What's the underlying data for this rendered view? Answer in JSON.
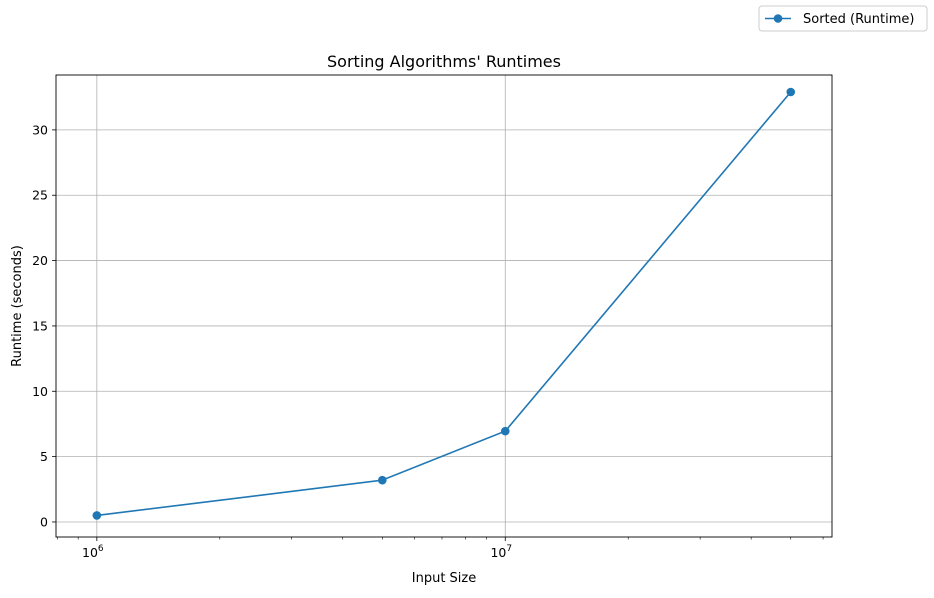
{
  "chart_data": {
    "type": "line",
    "title": "Sorting Algorithms' Runtimes",
    "xlabel": "Input Size",
    "ylabel": "Runtime (seconds)",
    "xscale": "log",
    "xlim": [
      794328,
      63095734
    ],
    "ylim": [
      -1.15,
      34.2
    ],
    "grid": true,
    "legend_position": "top-right, outside plot",
    "x_major_ticks": [
      {
        "value": 1000000,
        "base": "10",
        "exp": "6"
      },
      {
        "value": 10000000,
        "base": "10",
        "exp": "7"
      }
    ],
    "y_ticks": [
      0,
      5,
      10,
      15,
      20,
      25,
      30
    ],
    "series": [
      {
        "name": "Sorted (Runtime)",
        "color": "#1f77b4",
        "marker": "circle",
        "x": [
          1000000,
          5000000,
          10000000,
          50000000
        ],
        "y": [
          0.5,
          3.2,
          6.95,
          32.9
        ]
      }
    ]
  }
}
